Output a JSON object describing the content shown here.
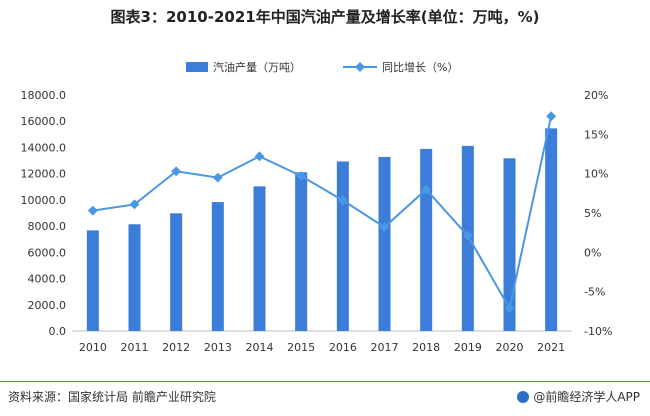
{
  "title": "图表3：2010-2021年中国汽油产量及增长率(单位：万吨，%)",
  "source": "资料来源：国家统计局 前瞻产业研究院",
  "brand": "@前瞻经济学人APP",
  "colors": {
    "bar": "#3b7dd8",
    "line": "#4a97e6",
    "rule": "#3f7fc8"
  },
  "chart_data": {
    "type": "bar+line",
    "categories": [
      "2010",
      "2011",
      "2012",
      "2013",
      "2014",
      "2015",
      "2016",
      "2017",
      "2018",
      "2019",
      "2020",
      "2021"
    ],
    "series": [
      {
        "name": "汽油产量（万吨）",
        "type": "bar",
        "axis": "left",
        "values": [
          7675,
          8141,
          8976,
          9833,
          11030,
          12104,
          12932,
          13276,
          13888,
          14121,
          13172,
          15457
        ]
      },
      {
        "name": "同比增长（%）",
        "type": "line",
        "axis": "right",
        "values": [
          5.3,
          6.1,
          10.3,
          9.5,
          12.2,
          9.7,
          6.6,
          3.2,
          8.0,
          2.1,
          -7.1,
          17.3
        ]
      }
    ],
    "yleft": {
      "min": 0,
      "max": 18000,
      "step": 2000,
      "ticks": [
        "0.0",
        "2000.0",
        "4000.0",
        "6000.0",
        "8000.0",
        "10000.0",
        "12000.0",
        "14000.0",
        "16000.0",
        "18000.0"
      ]
    },
    "yright": {
      "min": -10,
      "max": 20,
      "step": 5,
      "ticks": [
        "-10%",
        "-5%",
        "0%",
        "5%",
        "10%",
        "15%",
        "20%"
      ]
    },
    "legend": [
      "汽油产量（万吨）",
      "同比增长（%）"
    ],
    "legend_position": "top-center",
    "grid": false
  }
}
